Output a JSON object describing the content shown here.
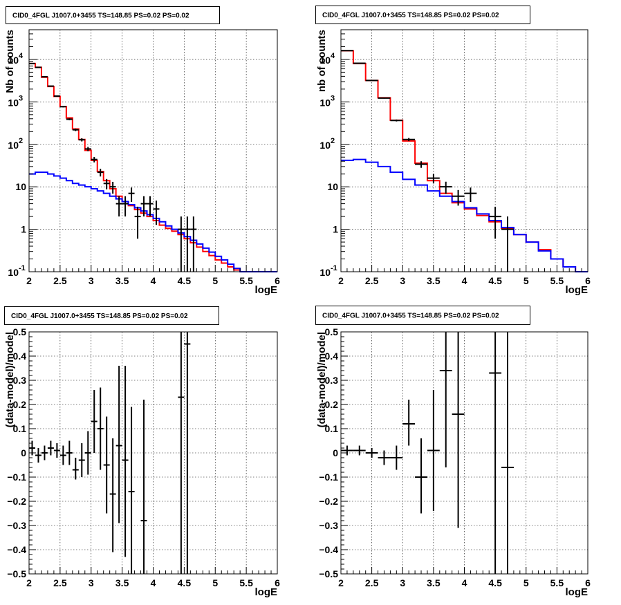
{
  "chart_data": [
    {
      "type": "histogram",
      "panel": "top-left",
      "title": "CID0_4FGL J1007.0+3455 TS=148.85 PS=0.02 PS=0.02",
      "xlabel": "logE",
      "ylabel": "Nb of counts",
      "xlim": [
        2,
        6
      ],
      "ylim": [
        0.1,
        50000
      ],
      "yscale": "log",
      "grid": true,
      "x_ticks": [
        "2",
        "2.5",
        "3",
        "3.5",
        "4",
        "4.5",
        "5",
        "5.5",
        "6"
      ],
      "y_ticks": [
        {
          "value": 0.1,
          "base": "10",
          "exp": "-1"
        },
        {
          "value": 1,
          "label": "1"
        },
        {
          "value": 10,
          "label": "10"
        },
        {
          "value": 100,
          "base": "10",
          "exp": "2"
        },
        {
          "value": 1000,
          "base": "10",
          "exp": "3"
        },
        {
          "value": 10000,
          "base": "10",
          "exp": "4"
        }
      ],
      "bin_edges": [
        2.0,
        2.1,
        2.2,
        2.3,
        2.4,
        2.5,
        2.6,
        2.7,
        2.8,
        2.9,
        3.0,
        3.1,
        3.2,
        3.3,
        3.4,
        3.5,
        3.6,
        3.7,
        3.8,
        3.9,
        4.0,
        4.1,
        4.2,
        4.3,
        4.4,
        4.5,
        4.6,
        4.7,
        4.8,
        4.9,
        5.0,
        5.1,
        5.2,
        5.3,
        5.4,
        5.5,
        5.6,
        5.7,
        5.8,
        5.9,
        6.0
      ],
      "series": [
        {
          "color": "#ff0000",
          "values": [
            8000,
            6500,
            3800,
            2300,
            1350,
            780,
            420,
            230,
            130,
            72,
            42,
            23,
            14,
            9,
            6,
            4.5,
            3.6,
            2.9,
            2.4,
            2.0,
            1.6,
            1.25,
            1.05,
            0.9,
            0.75,
            0.6,
            0.48,
            0.38,
            0.3,
            0.24,
            0.19,
            0.16,
            0.13,
            0.11,
            0.1,
            0.1,
            0.1,
            0.1,
            0.1,
            0.1
          ]
        },
        {
          "color": "#0000ff",
          "values": [
            20,
            22,
            22,
            20,
            18,
            16,
            14,
            12,
            11,
            10,
            9,
            8,
            7,
            6,
            5.2,
            4.5,
            3.8,
            3.2,
            2.7,
            2.2,
            1.8,
            1.5,
            1.2,
            1.0,
            0.82,
            0.67,
            0.55,
            0.45,
            0.36,
            0.29,
            0.23,
            0.19,
            0.15,
            0.12,
            0.1,
            0.1,
            0.1,
            0.1,
            0.1,
            0.1
          ]
        }
      ],
      "data_points": [
        {
          "x": 2.05,
          "y": 8000,
          "xerr": 0.05,
          "ylo": 7900,
          "yhi": 8100
        },
        {
          "x": 2.15,
          "y": 6500,
          "xerr": 0.05,
          "ylo": 6400,
          "yhi": 6600
        },
        {
          "x": 2.25,
          "y": 3900,
          "xerr": 0.05,
          "ylo": 3830,
          "yhi": 3970
        },
        {
          "x": 2.35,
          "y": 2350,
          "xerr": 0.05,
          "ylo": 2300,
          "yhi": 2400
        },
        {
          "x": 2.45,
          "y": 1370,
          "xerr": 0.05,
          "ylo": 1330,
          "yhi": 1410
        },
        {
          "x": 2.55,
          "y": 770,
          "xerr": 0.05,
          "ylo": 742,
          "yhi": 798
        },
        {
          "x": 2.65,
          "y": 390,
          "xerr": 0.05,
          "ylo": 370,
          "yhi": 410
        },
        {
          "x": 2.75,
          "y": 220,
          "xerr": 0.05,
          "ylo": 205,
          "yhi": 235
        },
        {
          "x": 2.85,
          "y": 128,
          "xerr": 0.05,
          "ylo": 117,
          "yhi": 139
        },
        {
          "x": 2.95,
          "y": 78,
          "xerr": 0.05,
          "ylo": 69,
          "yhi": 87
        },
        {
          "x": 3.05,
          "y": 44,
          "xerr": 0.05,
          "ylo": 37.5,
          "yhi": 50.5
        },
        {
          "x": 3.15,
          "y": 22,
          "xerr": 0.05,
          "ylo": 17.5,
          "yhi": 26.5
        },
        {
          "x": 3.25,
          "y": 12,
          "xerr": 0.05,
          "ylo": 8.7,
          "yhi": 15.3
        },
        {
          "x": 3.35,
          "y": 10,
          "xerr": 0.05,
          "ylo": 6.9,
          "yhi": 13.1
        },
        {
          "x": 3.45,
          "y": 4,
          "xerr": 0.05,
          "ylo": 2.0,
          "yhi": 6.0
        },
        {
          "x": 3.55,
          "y": 4,
          "xerr": 0.05,
          "ylo": 2.0,
          "yhi": 6.0
        },
        {
          "x": 3.65,
          "y": 7,
          "xerr": 0.05,
          "ylo": 4.4,
          "yhi": 9.6
        },
        {
          "x": 3.75,
          "y": 2,
          "xerr": 0.05,
          "ylo": 0.6,
          "yhi": 3.4
        },
        {
          "x": 3.85,
          "y": 4,
          "xerr": 0.05,
          "ylo": 2.0,
          "yhi": 6.0
        },
        {
          "x": 3.95,
          "y": 4,
          "xerr": 0.05,
          "ylo": 2.0,
          "yhi": 6.0
        },
        {
          "x": 4.05,
          "y": 3,
          "xerr": 0.05,
          "ylo": 1.27,
          "yhi": 4.73
        },
        {
          "x": 4.45,
          "y": 1,
          "xerr": 0.05,
          "ylo": 0.1,
          "yhi": 2.0
        },
        {
          "x": 4.55,
          "y": 1,
          "xerr": 0.05,
          "ylo": 0.1,
          "yhi": 2.0
        },
        {
          "x": 4.65,
          "y": 1,
          "xerr": 0.05,
          "ylo": 0.1,
          "yhi": 2.0
        }
      ]
    },
    {
      "type": "histogram",
      "panel": "top-right",
      "title": "CID0_4FGL J1007.0+3455 TS=148.85 PS=0.02 PS=0.02",
      "xlabel": "logE",
      "ylabel": "nb of counts",
      "xlim": [
        2,
        6
      ],
      "ylim": [
        0.1,
        50000
      ],
      "yscale": "log",
      "grid": true,
      "x_ticks": [
        "2",
        "2.5",
        "3",
        "3.5",
        "4",
        "4.5",
        "5",
        "5.5",
        "6"
      ],
      "y_ticks": [
        {
          "value": 0.1,
          "base": "10",
          "exp": "-1"
        },
        {
          "value": 1,
          "label": "1"
        },
        {
          "value": 10,
          "label": "10"
        },
        {
          "value": 100,
          "base": "10",
          "exp": "2"
        },
        {
          "value": 1000,
          "base": "10",
          "exp": "3"
        },
        {
          "value": 10000,
          "base": "10",
          "exp": "4"
        }
      ],
      "bin_edges": [
        2.0,
        2.2,
        2.4,
        2.6,
        2.8,
        3.0,
        3.2,
        3.4,
        3.6,
        3.8,
        4.0,
        4.2,
        4.4,
        4.6,
        4.8,
        5.0,
        5.2,
        5.4,
        5.6,
        5.8,
        6.0
      ],
      "series": [
        {
          "color": "#ff0000",
          "values": [
            16000,
            8000,
            3200,
            1250,
            370,
            120,
            36,
            14,
            7,
            4.2,
            3.0,
            2.1,
            1.5,
            1.05,
            0.75,
            0.5,
            0.33,
            0.2,
            0.13,
            0.1
          ]
        },
        {
          "color": "#0000ff",
          "values": [
            42,
            44,
            38,
            30,
            22,
            15,
            11,
            8,
            6,
            4.5,
            3.2,
            2.3,
            1.6,
            1.1,
            0.75,
            0.5,
            0.31,
            0.2,
            0.13,
            0.1
          ]
        }
      ],
      "data_points": [
        {
          "x": 2.1,
          "y": 16100,
          "xerr": 0.1,
          "ylo": 15970,
          "yhi": 16230
        },
        {
          "x": 2.3,
          "y": 8100,
          "xerr": 0.1,
          "ylo": 8010,
          "yhi": 8190
        },
        {
          "x": 2.5,
          "y": 3200,
          "xerr": 0.1,
          "ylo": 3140,
          "yhi": 3260
        },
        {
          "x": 2.7,
          "y": 1230,
          "xerr": 0.1,
          "ylo": 1195,
          "yhi": 1265
        },
        {
          "x": 2.9,
          "y": 365,
          "xerr": 0.1,
          "ylo": 346,
          "yhi": 384
        },
        {
          "x": 3.1,
          "y": 130,
          "xerr": 0.1,
          "ylo": 119,
          "yhi": 141
        },
        {
          "x": 3.3,
          "y": 34,
          "xerr": 0.1,
          "ylo": 28,
          "yhi": 40
        },
        {
          "x": 3.5,
          "y": 16,
          "xerr": 0.1,
          "ylo": 12,
          "yhi": 20
        },
        {
          "x": 3.7,
          "y": 10,
          "xerr": 0.1,
          "ylo": 6.8,
          "yhi": 13.2
        },
        {
          "x": 3.9,
          "y": 6,
          "xerr": 0.1,
          "ylo": 3.6,
          "yhi": 8.4
        },
        {
          "x": 4.1,
          "y": 7,
          "xerr": 0.1,
          "ylo": 4.4,
          "yhi": 9.6
        },
        {
          "x": 4.5,
          "y": 2,
          "xerr": 0.1,
          "ylo": 0.6,
          "yhi": 3.4
        },
        {
          "x": 4.7,
          "y": 1,
          "xerr": 0.1,
          "ylo": 0.1,
          "yhi": 2.0
        }
      ]
    },
    {
      "type": "scatter",
      "panel": "bottom-left",
      "title": "CID0_4FGL J1007.0+3455 TS=148.85 PS=0.02 PS=0.02",
      "xlabel": "logE",
      "ylabel": "(data-model)/model",
      "xlim": [
        2,
        6
      ],
      "ylim": [
        -0.5,
        0.5
      ],
      "yscale": "linear",
      "grid": true,
      "x_ticks": [
        "2",
        "2.5",
        "3",
        "3.5",
        "4",
        "4.5",
        "5",
        "5.5",
        "6"
      ],
      "y_ticks": [
        {
          "value": -0.5,
          "label": "−0.5"
        },
        {
          "value": -0.4,
          "label": "−0.4"
        },
        {
          "value": -0.3,
          "label": "−0.3"
        },
        {
          "value": -0.2,
          "label": "−0.2"
        },
        {
          "value": -0.1,
          "label": "−0.1"
        },
        {
          "value": 0,
          "label": "0"
        },
        {
          "value": 0.1,
          "label": "0.1"
        },
        {
          "value": 0.2,
          "label": "0.2"
        },
        {
          "value": 0.3,
          "label": "0.3"
        },
        {
          "value": 0.4,
          "label": "0.4"
        },
        {
          "value": 0.5,
          "label": "0.5"
        }
      ],
      "data_points": [
        {
          "x": 2.05,
          "y": 0.02,
          "xerr": 0.05,
          "ylo": -0.01,
          "yhi": 0.05
        },
        {
          "x": 2.15,
          "y": -0.01,
          "xerr": 0.05,
          "ylo": -0.04,
          "yhi": 0.02
        },
        {
          "x": 2.25,
          "y": 0.0,
          "xerr": 0.05,
          "ylo": -0.03,
          "yhi": 0.03
        },
        {
          "x": 2.35,
          "y": 0.02,
          "xerr": 0.05,
          "ylo": -0.01,
          "yhi": 0.05
        },
        {
          "x": 2.45,
          "y": 0.01,
          "xerr": 0.05,
          "ylo": -0.02,
          "yhi": 0.04
        },
        {
          "x": 2.55,
          "y": -0.01,
          "xerr": 0.05,
          "ylo": -0.05,
          "yhi": 0.03
        },
        {
          "x": 2.65,
          "y": 0.0,
          "xerr": 0.05,
          "ylo": -0.05,
          "yhi": 0.05
        },
        {
          "x": 2.75,
          "y": -0.07,
          "xerr": 0.05,
          "ylo": -0.11,
          "yhi": -0.02
        },
        {
          "x": 2.85,
          "y": -0.03,
          "xerr": 0.05,
          "ylo": -0.1,
          "yhi": 0.04
        },
        {
          "x": 2.95,
          "y": 0.0,
          "xerr": 0.05,
          "ylo": -0.09,
          "yhi": 0.09
        },
        {
          "x": 3.05,
          "y": 0.13,
          "xerr": 0.05,
          "ylo": 0.0,
          "yhi": 0.26
        },
        {
          "x": 3.15,
          "y": 0.1,
          "xerr": 0.05,
          "ylo": -0.07,
          "yhi": 0.27
        },
        {
          "x": 3.25,
          "y": -0.05,
          "xerr": 0.05,
          "ylo": -0.25,
          "yhi": 0.15
        },
        {
          "x": 3.35,
          "y": -0.17,
          "xerr": 0.05,
          "ylo": -0.41,
          "yhi": 0.06
        },
        {
          "x": 3.45,
          "y": 0.03,
          "xerr": 0.05,
          "ylo": -0.29,
          "yhi": 0.36
        },
        {
          "x": 3.55,
          "y": -0.03,
          "xerr": 0.05,
          "ylo": -0.43,
          "yhi": 0.36
        },
        {
          "x": 3.65,
          "y": -0.16,
          "xerr": 0.05,
          "ylo": -0.5,
          "yhi": 0.19
        },
        {
          "x": 3.85,
          "y": -0.28,
          "xerr": 0.05,
          "ylo": -0.5,
          "yhi": 0.22
        },
        {
          "x": 4.45,
          "y": 0.23,
          "xerr": 0.05,
          "ylo": -0.5,
          "yhi": 0.5
        },
        {
          "x": 4.55,
          "y": 0.45,
          "xerr": 0.05,
          "ylo": -0.5,
          "yhi": 0.5
        }
      ]
    },
    {
      "type": "scatter",
      "panel": "bottom-right",
      "title": "CID0_4FGL J1007.0+3455 TS=148.85 PS=0.02 PS=0.02",
      "xlabel": "logE",
      "ylabel": "(data-model)/model",
      "xlim": [
        2,
        6
      ],
      "ylim": [
        -0.5,
        0.5
      ],
      "yscale": "linear",
      "grid": true,
      "x_ticks": [
        "2",
        "2.5",
        "3",
        "3.5",
        "4",
        "4.5",
        "5",
        "5.5",
        "6"
      ],
      "y_ticks": [
        {
          "value": -0.5,
          "label": "−0.5"
        },
        {
          "value": -0.4,
          "label": "−0.4"
        },
        {
          "value": -0.3,
          "label": "−0.3"
        },
        {
          "value": -0.2,
          "label": "−0.2"
        },
        {
          "value": -0.1,
          "label": "−0.1"
        },
        {
          "value": 0,
          "label": "0"
        },
        {
          "value": 0.1,
          "label": "0.1"
        },
        {
          "value": 0.2,
          "label": "0.2"
        },
        {
          "value": 0.3,
          "label": "0.3"
        },
        {
          "value": 0.4,
          "label": "0.4"
        },
        {
          "value": 0.5,
          "label": "0.5"
        }
      ],
      "data_points": [
        {
          "x": 2.1,
          "y": 0.01,
          "xerr": 0.1,
          "ylo": -0.01,
          "yhi": 0.03
        },
        {
          "x": 2.3,
          "y": 0.01,
          "xerr": 0.1,
          "ylo": -0.01,
          "yhi": 0.03
        },
        {
          "x": 2.5,
          "y": 0.0,
          "xerr": 0.1,
          "ylo": -0.02,
          "yhi": 0.02
        },
        {
          "x": 2.7,
          "y": -0.02,
          "xerr": 0.1,
          "ylo": -0.05,
          "yhi": 0.01
        },
        {
          "x": 2.9,
          "y": -0.02,
          "xerr": 0.1,
          "ylo": -0.07,
          "yhi": 0.03
        },
        {
          "x": 3.1,
          "y": 0.12,
          "xerr": 0.1,
          "ylo": 0.03,
          "yhi": 0.22
        },
        {
          "x": 3.3,
          "y": -0.1,
          "xerr": 0.1,
          "ylo": -0.25,
          "yhi": 0.06
        },
        {
          "x": 3.5,
          "y": 0.01,
          "xerr": 0.1,
          "ylo": -0.24,
          "yhi": 0.26
        },
        {
          "x": 3.7,
          "y": 0.34,
          "xerr": 0.1,
          "ylo": -0.06,
          "yhi": 0.5
        },
        {
          "x": 3.9,
          "y": 0.16,
          "xerr": 0.1,
          "ylo": -0.31,
          "yhi": 0.5
        },
        {
          "x": 4.5,
          "y": 0.33,
          "xerr": 0.1,
          "ylo": -0.5,
          "yhi": 0.5
        },
        {
          "x": 4.7,
          "y": -0.06,
          "xerr": 0.1,
          "ylo": -0.5,
          "yhi": 0.5
        }
      ]
    }
  ]
}
